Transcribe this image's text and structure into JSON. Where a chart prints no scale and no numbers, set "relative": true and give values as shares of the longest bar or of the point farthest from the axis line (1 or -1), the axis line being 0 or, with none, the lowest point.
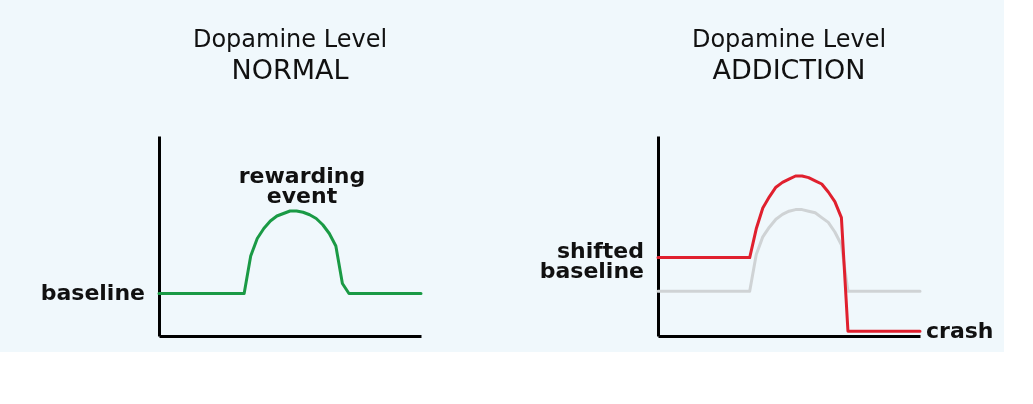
{
  "chart_data": [
    {
      "type": "line",
      "relative": true,
      "tick_labels": false,
      "title": "Dopamine Level",
      "subtitle": "NORMAL",
      "categories": [
        null,
        null,
        null,
        null,
        null,
        null,
        null,
        null,
        null,
        null,
        null,
        null,
        null,
        null,
        null,
        null,
        null,
        null,
        null,
        null,
        null,
        null,
        null,
        null,
        null,
        null,
        null,
        null,
        null,
        null,
        null,
        null,
        null,
        null,
        null,
        null,
        null,
        null,
        null,
        null,
        null
      ],
      "series": [
        {
          "color": "#1a9a45",
          "values": [
            0.34,
            0.34,
            0.34,
            0.34,
            0.34,
            0.34,
            0.34,
            0.34,
            0.34,
            0.34,
            0.34,
            0.34,
            0.34,
            0.34,
            0.64,
            0.78,
            0.86,
            0.92,
            0.96,
            0.98,
            1,
            1,
            0.99,
            0.97,
            0.94,
            0.89,
            0.82,
            0.72,
            0.42,
            0.34,
            0.34,
            0.34,
            0.34,
            0.34,
            0.34,
            0.34,
            0.34,
            0.34,
            0.34,
            0.34,
            0.34
          ]
        }
      ],
      "annotations": [
        "baseline",
        "rewarding event"
      ]
    },
    {
      "type": "line",
      "relative": true,
      "tick_labels": false,
      "title": "Dopamine Level",
      "subtitle": "ADDICTION",
      "categories": [
        null,
        null,
        null,
        null,
        null,
        null,
        null,
        null,
        null,
        null,
        null,
        null,
        null,
        null,
        null,
        null,
        null,
        null,
        null,
        null,
        null,
        null,
        null,
        null,
        null,
        null,
        null,
        null,
        null,
        null,
        null,
        null,
        null,
        null,
        null,
        null,
        null,
        null,
        null,
        null,
        null
      ],
      "series": [
        {
          "color": "#cfd3d5",
          "values": [
            0.28,
            0.28,
            0.28,
            0.28,
            0.28,
            0.28,
            0.28,
            0.28,
            0.28,
            0.28,
            0.28,
            0.28,
            0.28,
            0.28,
            0.28,
            0.51,
            0.62,
            0.68,
            0.73,
            0.76,
            0.78,
            0.79,
            0.79,
            0.78,
            0.77,
            0.74,
            0.71,
            0.65,
            0.57,
            0.28,
            0.28,
            0.28,
            0.28,
            0.28,
            0.28,
            0.28,
            0.28,
            0.28,
            0.28,
            0.28,
            0.28
          ]
        },
        {
          "color": "#e0202e",
          "values": [
            0.49,
            0.49,
            0.49,
            0.49,
            0.49,
            0.49,
            0.49,
            0.49,
            0.49,
            0.49,
            0.49,
            0.49,
            0.49,
            0.49,
            0.49,
            0.67,
            0.8,
            0.87,
            0.93,
            0.96,
            0.98,
            1,
            1,
            0.99,
            0.97,
            0.95,
            0.9,
            0.84,
            0.74,
            0.03,
            0.03,
            0.03,
            0.03,
            0.03,
            0.03,
            0.03,
            0.03,
            0.03,
            0.03,
            0.03,
            0.03
          ]
        }
      ],
      "annotations": [
        "shifted baseline",
        "crash"
      ]
    }
  ]
}
